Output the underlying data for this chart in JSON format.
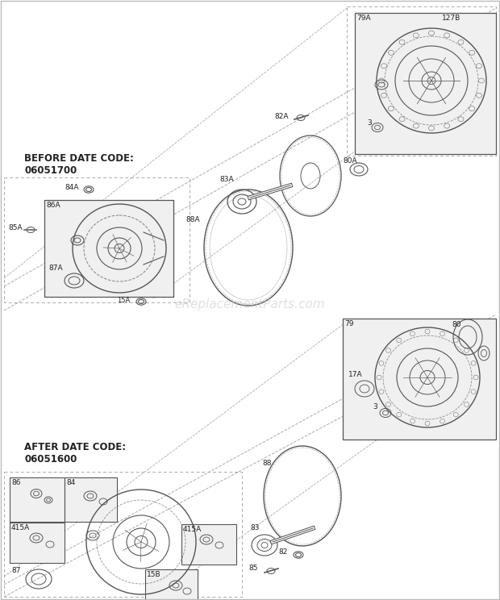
{
  "bg_color": "#ffffff",
  "watermark": "eReplacementParts.com",
  "before_label_line1": "BEFORE DATE CODE:",
  "before_label_line2": "06051700",
  "after_label_line1": "AFTER DATE CODE:",
  "after_label_line2": "06051600",
  "fig_w": 6.2,
  "fig_h": 7.44,
  "dpi": 100
}
